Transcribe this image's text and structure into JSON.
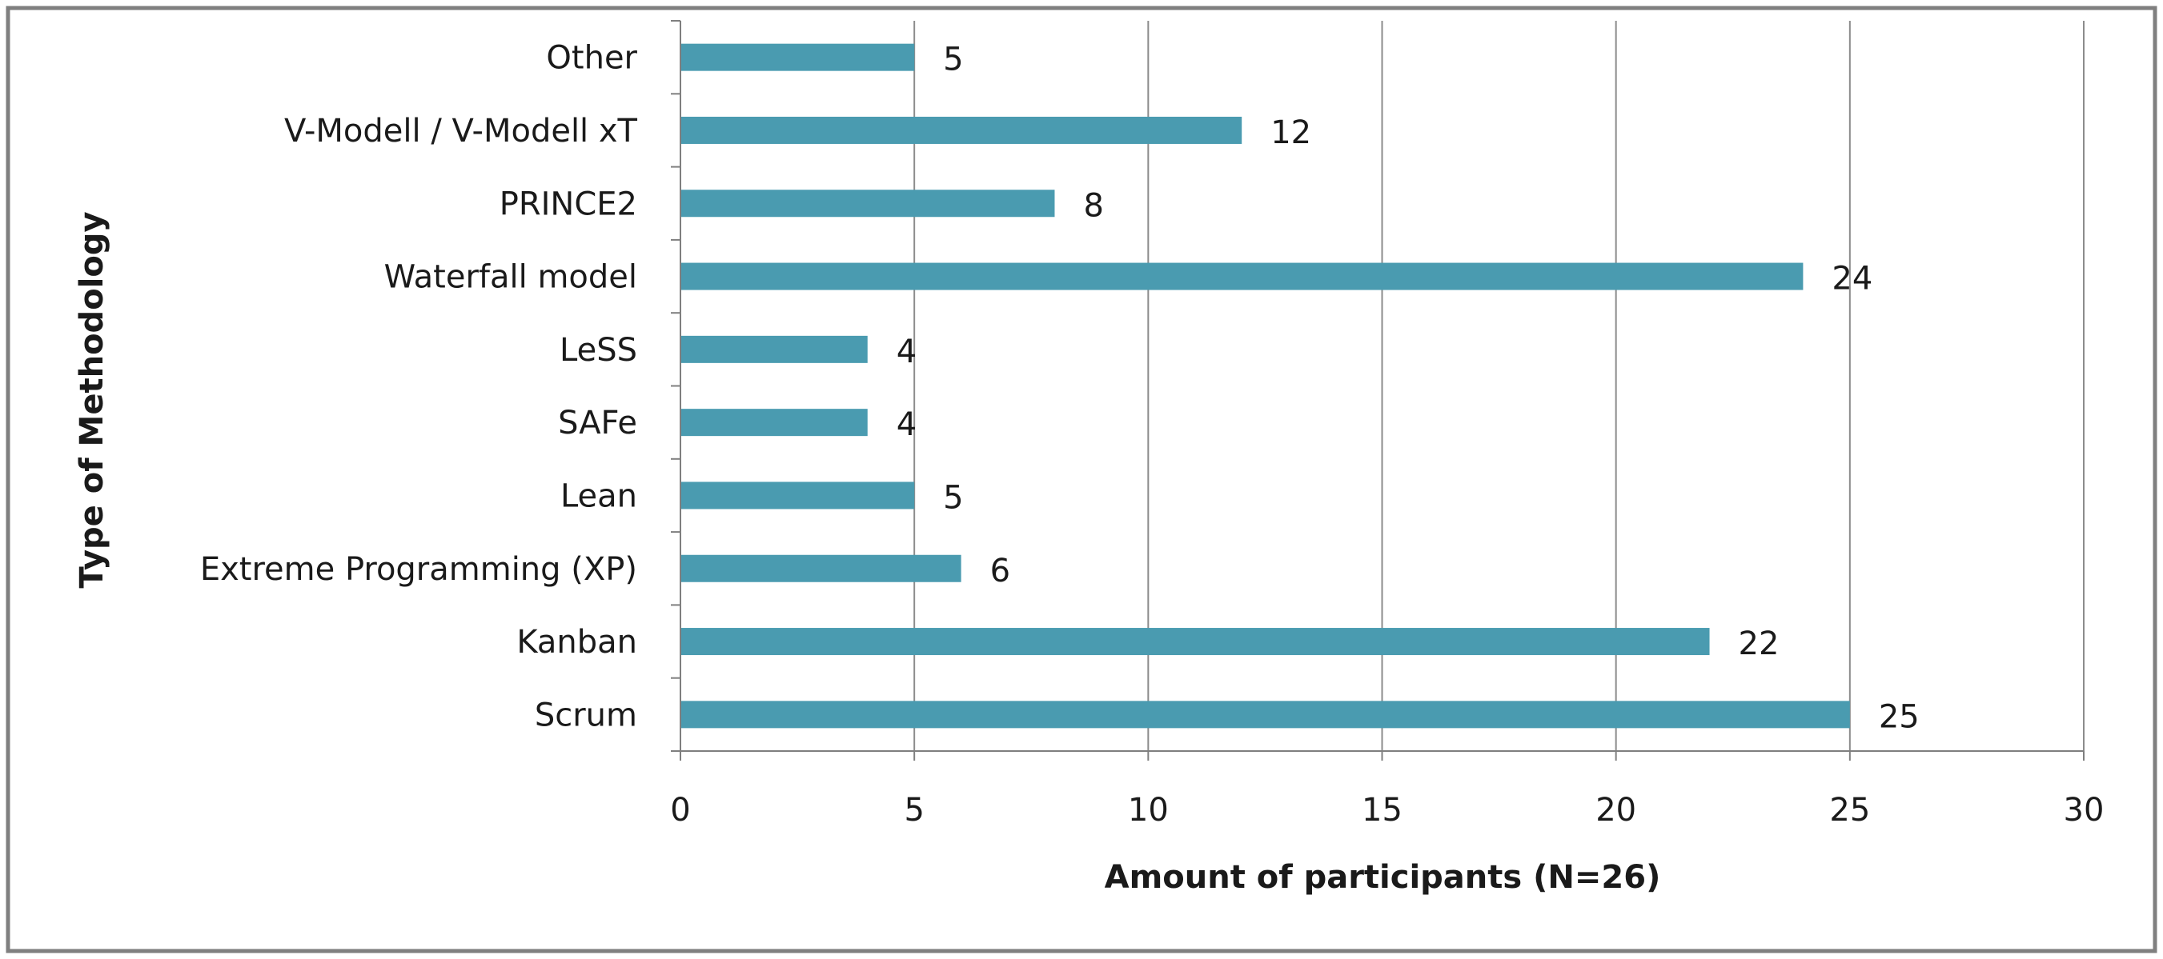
{
  "chart_data": {
    "type": "bar",
    "orientation": "horizontal",
    "categories": [
      "Scrum",
      "Kanban",
      "Extreme Programming (XP)",
      "Lean",
      "SAFe",
      "LeSS",
      "Waterfall model",
      "PRINCE2",
      "V-Modell / V-Modell xT",
      "Other"
    ],
    "values": [
      25,
      22,
      6,
      5,
      4,
      4,
      24,
      8,
      12,
      5
    ],
    "data_labels": [
      "25",
      "22",
      "6",
      "5",
      "4",
      "4",
      "24",
      "8",
      "12",
      "5"
    ],
    "xlabel": "Amount of participants (N=26)",
    "ylabel": "Type of Methodology",
    "xlim": [
      0,
      30
    ],
    "xticks": [
      0,
      5,
      10,
      15,
      20,
      25,
      30
    ],
    "xtick_labels": [
      "0",
      "5",
      "10",
      "15",
      "20",
      "25",
      "30"
    ],
    "grid": "vertical major gridlines",
    "legend": "none",
    "colors": {
      "bar": "#4a9bb0",
      "grid": "#8c8c8c",
      "axis": "#7f7f7f",
      "frame": "#7f7f7f",
      "text": "#1a1a1a"
    }
  }
}
